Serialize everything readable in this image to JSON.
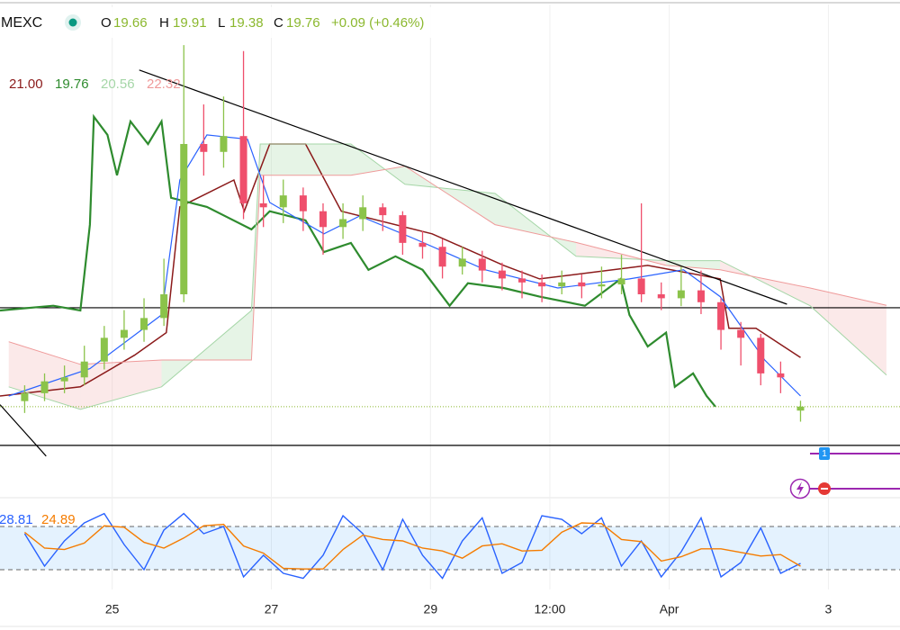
{
  "header": {
    "symbol": "MEXC",
    "labels": [
      "O",
      "H",
      "L",
      "C"
    ],
    "change": "+0.09 (+0.46%)",
    "alert_badge": "1"
  },
  "chart_data": [
    {
      "type": "candlestick",
      "xlim": [
        23.59,
        34.9
      ],
      "ylim": [
        17.64,
        30.04
      ],
      "xticks": [
        25,
        27,
        29,
        {
          "value": 30.5,
          "label": "12:00"
        },
        {
          "value": 32,
          "label": "Apr"
        },
        {
          "value": 34,
          "label": "3"
        }
      ],
      "grid": true,
      "x": [
        23.9,
        24.15,
        24.4,
        24.65,
        24.9,
        25.15,
        25.4,
        25.65,
        25.9,
        26.15,
        26.4,
        26.65,
        26.9,
        27.15,
        27.4,
        27.65,
        27.9,
        28.15,
        28.4,
        28.65,
        28.9,
        29.15,
        29.4,
        29.65,
        29.9,
        30.15,
        30.4,
        30.65,
        30.9,
        31.15,
        31.4,
        31.65,
        31.9,
        32.15,
        32.4,
        32.65,
        32.9,
        33.15,
        33.4,
        33.65
      ],
      "candles": {
        "up_color": "#8bc34a",
        "down_color": "#ef4f6c",
        "open": [
          19.9,
          20.1,
          20.4,
          20.5,
          20.9,
          21.5,
          21.7,
          22.0,
          22.6,
          26.4,
          26.2,
          26.6,
          24.9,
          24.8,
          25.1,
          24.7,
          24.3,
          24.5,
          24.8,
          24.6,
          23.9,
          23.8,
          23.3,
          23.5,
          23.2,
          23.0,
          22.9,
          22.8,
          22.9,
          22.8,
          22.85,
          23.0,
          22.6,
          22.5,
          22.7,
          22.4,
          21.7,
          21.5,
          20.6,
          19.66
        ],
        "high": [
          20.3,
          20.6,
          20.8,
          21.3,
          21.8,
          22.2,
          22.5,
          23.5,
          28.9,
          27.4,
          27.6,
          28.75,
          25.6,
          25.5,
          25.3,
          24.9,
          24.9,
          25.1,
          24.9,
          24.7,
          24.2,
          24.0,
          23.8,
          23.7,
          23.4,
          23.2,
          23.1,
          23.2,
          23.1,
          23.3,
          23.6,
          24.9,
          22.9,
          23.3,
          23.2,
          22.5,
          21.9,
          21.6,
          20.9,
          19.91
        ],
        "low": [
          19.6,
          19.9,
          20.1,
          20.3,
          20.7,
          21.2,
          21.4,
          21.8,
          22.4,
          25.6,
          25.8,
          24.5,
          24.3,
          24.4,
          24.2,
          23.6,
          24.0,
          24.2,
          24.2,
          23.6,
          23.5,
          23.0,
          23.1,
          22.9,
          22.7,
          22.5,
          22.4,
          22.6,
          22.5,
          22.5,
          22.6,
          22.4,
          22.2,
          22.3,
          22.1,
          21.2,
          20.8,
          20.3,
          20.1,
          19.38
        ],
        "close": [
          20.1,
          20.4,
          20.5,
          20.9,
          21.5,
          21.7,
          22.0,
          22.6,
          26.4,
          26.2,
          26.6,
          24.9,
          24.8,
          25.1,
          24.7,
          24.3,
          24.5,
          24.8,
          24.6,
          23.9,
          23.8,
          23.3,
          23.5,
          23.2,
          23.0,
          22.9,
          22.8,
          22.9,
          22.8,
          22.85,
          23.0,
          22.6,
          22.5,
          22.7,
          22.4,
          21.7,
          21.5,
          20.6,
          20.5,
          19.76
        ]
      },
      "last_price_color": "#8bb82e",
      "lines": [
        {
          "color": "#8b1a1a",
          "width": 1.5,
          "x": [
            23.59,
            24.6,
            25.28,
            25.68,
            25.85,
            26.53,
            26.66,
            26.98,
            27.43,
            27.88,
            29.02,
            29.92,
            30.37,
            31.73,
            32.64,
            32.75,
            33.09,
            33.65
          ],
          "values": [
            20.03,
            20.26,
            21.06,
            21.63,
            24.81,
            25.49,
            24.7,
            26.4,
            26.4,
            24.7,
            24.13,
            23.33,
            22.99,
            23.33,
            22.99,
            21.74,
            21.74,
            21.0
          ]
        },
        {
          "color": "#2e8b2e",
          "width": 2.2,
          "x": [
            23.59,
            24.26,
            24.6,
            24.72,
            24.77,
            24.94,
            25.06,
            25.23,
            25.45,
            25.62,
            25.74,
            26.19,
            26.75,
            26.98,
            27.43,
            27.66,
            28.0,
            28.22,
            28.56,
            28.9,
            29.24,
            29.47,
            29.92,
            30.37,
            30.94,
            31.39,
            31.5,
            31.73,
            31.96,
            32.07,
            32.3,
            32.47,
            32.58
          ],
          "values": [
            22.19,
            22.31,
            22.19,
            24.36,
            27.09,
            26.63,
            25.61,
            26.97,
            26.4,
            26.97,
            25.04,
            24.81,
            24.24,
            24.7,
            24.47,
            23.67,
            23.9,
            23.22,
            23.56,
            23.22,
            22.31,
            22.88,
            22.76,
            22.54,
            22.31,
            22.99,
            22.08,
            21.28,
            21.63,
            20.26,
            20.6,
            20.03,
            19.76
          ]
        },
        {
          "color": "#a5d6a7",
          "width": 1,
          "x": [
            23.7,
            24.6,
            25.62,
            26.75,
            26.86,
            28.0,
            28.68,
            29.81,
            30.83,
            31.96,
            32.64,
            33.77,
            34.73
          ],
          "values": [
            20.26,
            19.69,
            20.26,
            22.19,
            26.4,
            26.4,
            25.38,
            25.15,
            23.56,
            23.45,
            23.45,
            22.31,
            20.56
          ]
        },
        {
          "color": "#ef9a9a",
          "width": 1,
          "x": [
            23.7,
            24.6,
            25.62,
            26.75,
            26.86,
            28.0,
            28.68,
            29.81,
            30.83,
            31.96,
            32.64,
            33.77,
            34.73
          ],
          "values": [
            21.4,
            20.83,
            20.94,
            20.94,
            25.61,
            25.61,
            25.84,
            24.36,
            23.91,
            23.33,
            23.22,
            22.76,
            22.32
          ]
        },
        {
          "color": "#2962ff",
          "width": 1.2,
          "x": [
            23.7,
            24.72,
            25.62,
            25.85,
            26.19,
            26.7,
            26.98,
            27.66,
            28.11,
            28.79,
            29.69,
            30.6,
            31.5,
            32.18,
            32.64,
            33.2,
            33.65
          ],
          "values": [
            20.03,
            20.72,
            22.08,
            25.49,
            26.63,
            26.52,
            24.92,
            24.13,
            24.58,
            24.01,
            23.22,
            22.76,
            22.99,
            23.22,
            22.54,
            20.94,
            20.03
          ]
        }
      ],
      "legend_labels": [
        "21.00",
        "19.76",
        "20.56",
        "22.32"
      ],
      "cloud": {
        "span_a": 2,
        "span_b": 3,
        "up_fill": "rgba(165,214,167,0.28)",
        "down_fill": "rgba(239,154,154,0.22)"
      },
      "hlines": [
        {
          "value": 22.26,
          "color": "#000000"
        },
        {
          "value": 18.78,
          "color": "#000000"
        }
      ],
      "trendlines": [
        {
          "color": "#000000",
          "x": [
            25.34,
            33.48
          ],
          "values": [
            28.27,
            22.35
          ]
        },
        {
          "color": "#000000",
          "x": [
            23.59,
            24.17
          ],
          "values": [
            19.81,
            18.51
          ]
        }
      ]
    },
    {
      "type": "stochastic",
      "ylim": [
        0,
        100
      ],
      "bands": [
        20,
        80
      ],
      "band_color": "rgba(33,150,243,0.12)",
      "series": [
        {
          "color": "#2962ff",
          "values": [
            70,
            25,
            60,
            85,
            98,
            55,
            20,
            75,
            98,
            70,
            80,
            10,
            40,
            15,
            8,
            40,
            95,
            70,
            20,
            90,
            40,
            8,
            60,
            92,
            15,
            30,
            95,
            90,
            70,
            92,
            25,
            60,
            10,
            45,
            92,
            10,
            30,
            78,
            15,
            28.81
          ]
        },
        {
          "color": "#f57c00",
          "values": [
            72,
            50,
            48,
            57,
            81,
            79,
            58,
            50,
            64,
            81,
            83,
            53,
            43,
            22,
            21,
            21,
            48,
            68,
            62,
            60,
            50,
            46,
            36,
            53,
            56,
            46,
            47,
            72,
            85,
            84,
            62,
            59,
            32,
            38,
            49,
            49,
            44,
            39,
            41,
            24.89
          ]
        }
      ]
    }
  ]
}
